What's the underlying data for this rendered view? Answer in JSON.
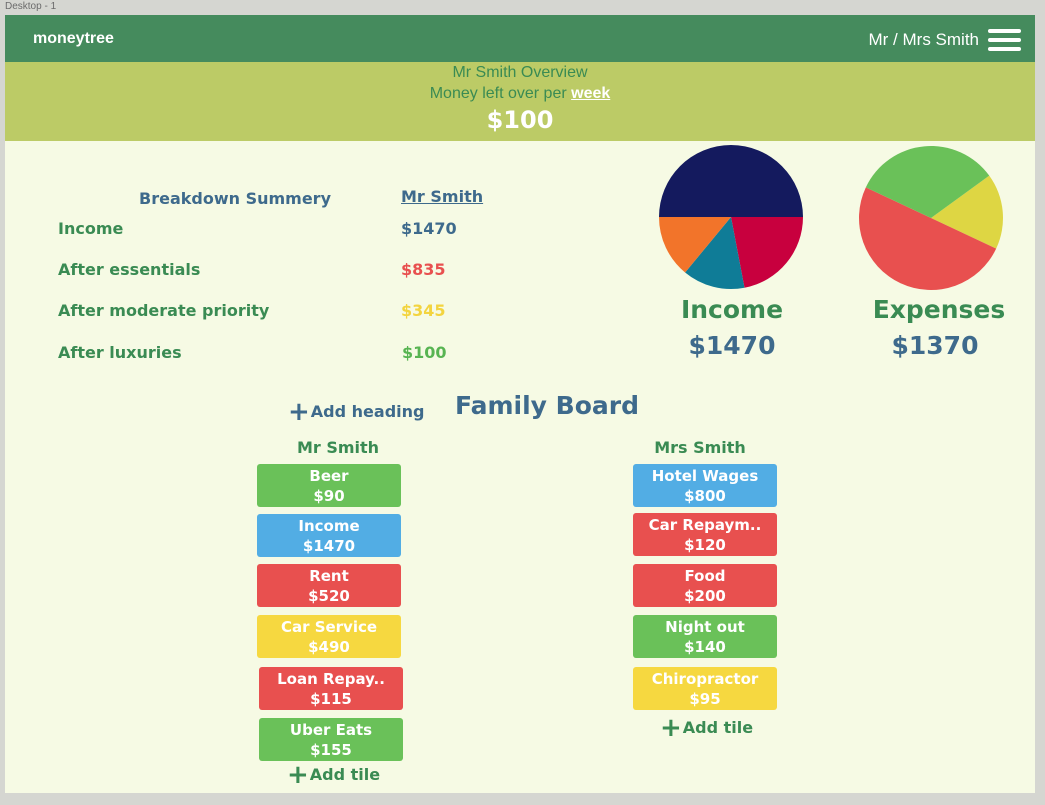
{
  "canvas_label": "Desktop - 1",
  "header": {
    "brand": "moneytree",
    "user": "Mr / Mrs Smith",
    "menu_icon": "hamburger-menu-icon"
  },
  "banner": {
    "title": "Mr Smith Overview",
    "subtitle_prefix": "Money left over per",
    "period": "week",
    "amount": "$100"
  },
  "breakdown": {
    "heading": "Breakdown Summery",
    "person": "Mr Smith",
    "rows": [
      {
        "label": "Income",
        "value": "$1470",
        "color": "#3e6a8c"
      },
      {
        "label": "After essentials",
        "value": "$835",
        "color": "#e8504f"
      },
      {
        "label": "After moderate priority",
        "value": "$345",
        "color": "#f3d43f"
      },
      {
        "label": "After luxuries",
        "value": "$100",
        "color": "#58b452"
      }
    ]
  },
  "charts": {
    "income": {
      "label": "Income",
      "value": "$1470"
    },
    "expenses": {
      "label": "Expenses",
      "value": "$1370"
    }
  },
  "chart_data": [
    {
      "type": "pie",
      "title": "Income",
      "slices": [
        {
          "value": 50,
          "color": "#141a5e"
        },
        {
          "value": 22,
          "color": "#c8003e"
        },
        {
          "value": 14,
          "color": "#0f7c97"
        },
        {
          "value": 14,
          "color": "#f2742a"
        }
      ]
    },
    {
      "type": "pie",
      "title": "Expenses",
      "slices": [
        {
          "value": 17,
          "color": "#ded643"
        },
        {
          "value": 50,
          "color": "#e8504f"
        },
        {
          "value": 33,
          "color": "#6ac159"
        }
      ]
    }
  ],
  "board": {
    "title": "Family Board",
    "add_heading": "Add heading",
    "add_tile": "Add tile",
    "columns": [
      {
        "name": "Mr Smith",
        "tiles": [
          {
            "label": "Beer",
            "amount": "$90",
            "color": "#6ac159"
          },
          {
            "label": "Income",
            "amount": "$1470",
            "color": "#52ade4"
          },
          {
            "label": "Rent",
            "amount": "$520",
            "color": "#e8504f"
          },
          {
            "label": "Car Service",
            "amount": "$490",
            "color": "#f6d840"
          },
          {
            "label": "Loan Repay..",
            "amount": "$115",
            "color": "#e8504f"
          },
          {
            "label": "Uber Eats",
            "amount": "$155",
            "color": "#6ac159"
          }
        ]
      },
      {
        "name": "Mrs Smith",
        "tiles": [
          {
            "label": "Hotel Wages",
            "amount": "$800",
            "color": "#52ade4"
          },
          {
            "label": "Car Repaym..",
            "amount": "$120",
            "color": "#e8504f"
          },
          {
            "label": "Food",
            "amount": "$200",
            "color": "#e8504f"
          },
          {
            "label": "Night out",
            "amount": "$140",
            "color": "#6ac159"
          },
          {
            "label": "Chiropractor",
            "amount": "$95",
            "color": "#f6d840"
          }
        ]
      }
    ]
  }
}
